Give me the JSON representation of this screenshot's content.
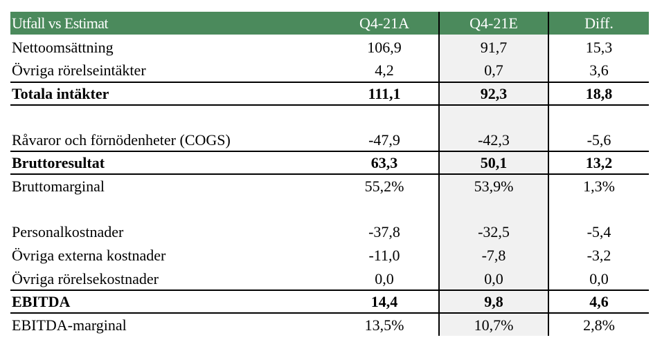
{
  "table": {
    "header": {
      "label": "Utfall vs Estimat",
      "col1": "Q4-21A",
      "col2": "Q4-21E",
      "col3": "Diff."
    },
    "rows": [
      {
        "label": "Nettoomsättning",
        "v1": "106,9",
        "v2": "91,7",
        "v3": "15,3"
      },
      {
        "label": "Övriga rörelseintäkter",
        "v1": "4,2",
        "v2": "0,7",
        "v3": "3,6"
      },
      {
        "label": "Totala intäkter",
        "v1": "111,1",
        "v2": "92,3",
        "v3": "18,8"
      },
      {
        "label": "Råvaror och förnödenheter (COGS)",
        "v1": "-47,9",
        "v2": "-42,3",
        "v3": "-5,6"
      },
      {
        "label": "Bruttoresultat",
        "v1": "63,3",
        "v2": "50,1",
        "v3": "13,2"
      },
      {
        "label": "Bruttomarginal",
        "v1": "55,2%",
        "v2": "53,9%",
        "v3": "1,3%"
      },
      {
        "label": "Personalkostnader",
        "v1": "-37,8",
        "v2": "-32,5",
        "v3": "-5,4"
      },
      {
        "label": "Övriga externa kostnader",
        "v1": "-11,0",
        "v2": "-7,8",
        "v3": "-3,2"
      },
      {
        "label": "Övriga rörelsekostnader",
        "v1": "0,0",
        "v2": "0,0",
        "v3": "0,0"
      },
      {
        "label": "EBITDA",
        "v1": "14,4",
        "v2": "9,8",
        "v3": "4,6"
      },
      {
        "label": "EBITDA-marginal",
        "v1": "13,5%",
        "v2": "10,7%",
        "v3": "2,8%"
      }
    ]
  },
  "colors": {
    "header_bg": "#4b8a5c",
    "header_text": "#ffffff",
    "estimate_shade": "#f1f1f1"
  }
}
